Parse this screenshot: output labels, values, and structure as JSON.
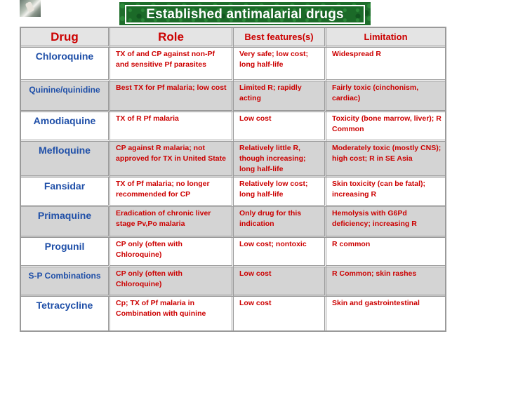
{
  "title": "Established antimalarial drugs",
  "headers": {
    "drug": "Drug",
    "role": "Role",
    "best": "Best features(s)",
    "limitation": "Limitation"
  },
  "rows": [
    {
      "drug": "Chloroquine",
      "role": "TX of and CP against non-Pf and sensitive Pf parasites",
      "best": "Very safe; low cost; long half-life",
      "limitation": "Widespread R"
    },
    {
      "drug": "Quinine/quinidine",
      "role": "Best TX for Pf malaria; low cost",
      "best": "Limited R; rapidly acting",
      "limitation": "Fairly toxic (cinchonism, cardiac)"
    },
    {
      "drug": "Amodiaquine",
      "role": "TX of R Pf malaria",
      "best": "Low cost",
      "limitation": "Toxicity (bone marrow, liver); R Common"
    },
    {
      "drug": "Mefloquine",
      "role": "CP against R malaria; not approved for TX in United State",
      "best": "Relatively little R, though increasing; long half-life",
      "limitation": "Moderately toxic (mostly CNS); high cost; R in SE Asia"
    },
    {
      "drug": "Fansidar",
      "role": "TX of Pf malaria; no longer recommended for CP",
      "best": "Relatively low cost; long half-life",
      "limitation": "Skin toxicity (can be fatal); increasing R"
    },
    {
      "drug": "Primaquine",
      "role": "Eradication of chronic liver stage Pv,Po malaria",
      "best": "Only drug for this indication",
      "limitation": "Hemolysis with G6Pd deficiency; increasing R"
    },
    {
      "drug": "Progunil",
      "role": "CP only (often with Chloroquine)",
      "best": "Low cost; nontoxic",
      "limitation": "R common"
    },
    {
      "drug": "S-P Combinations",
      "role": "CP only (often with Chloroquine)",
      "best": "Low cost",
      "limitation": "R Common; skin rashes"
    },
    {
      "drug": "Tetracycline",
      "role": "Cp; TX of Pf malaria in Combination with quinine",
      "best": "Low cost",
      "limitation": "Skin and gastrointestinal"
    }
  ]
}
